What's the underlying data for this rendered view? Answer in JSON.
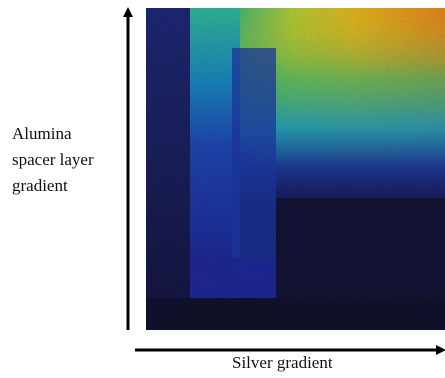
{
  "labels": {
    "y_axis_line1": "Alumina",
    "y_axis_line2": "spacer layer",
    "y_axis_line3": "gradient",
    "x_axis": "Silver gradient"
  },
  "colormap": [
    "#15154a",
    "#1f2a9c",
    "#1a55c8",
    "#1aa0c8",
    "#33c080",
    "#b8d83a",
    "#f0c020",
    "#f07a20"
  ]
}
